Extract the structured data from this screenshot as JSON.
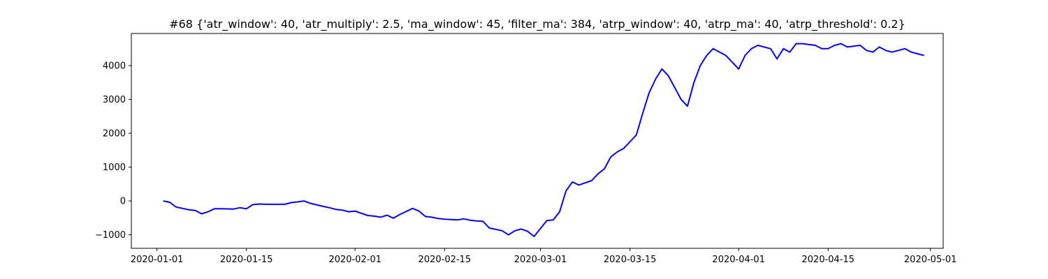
{
  "chart_data": {
    "type": "line",
    "title": "#68 {'atr_window': 40, 'atr_multiply': 2.5, 'ma_window': 45, 'filter_ma': 384, 'atrp_window': 40, 'atrp_ma': 40, 'atrp_threshold': 0.2}",
    "xlabel": "",
    "ylabel": "",
    "xlim": [
      "2019-12-28",
      "2020-05-03"
    ],
    "ylim": [
      -1400,
      4950
    ],
    "x_ticks": [
      "2020-01-01",
      "2020-01-15",
      "2020-02-01",
      "2020-02-15",
      "2020-03-01",
      "2020-03-15",
      "2020-04-01",
      "2020-04-15",
      "2020-05-01"
    ],
    "y_ticks": [
      -1000,
      0,
      1000,
      2000,
      3000,
      4000
    ],
    "y_tick_labels": [
      "−1000",
      "0",
      "1000",
      "2000",
      "3000",
      "4000"
    ],
    "grid": false,
    "line_color": "#0000ff",
    "series": [
      {
        "x": [
          "2020-01-02",
          "2020-01-03",
          "2020-01-04",
          "2020-01-06",
          "2020-01-07",
          "2020-01-08",
          "2020-01-09",
          "2020-01-10",
          "2020-01-11",
          "2020-01-13",
          "2020-01-14",
          "2020-01-15",
          "2020-01-16",
          "2020-01-17",
          "2020-01-18",
          "2020-01-20",
          "2020-01-21",
          "2020-01-22",
          "2020-01-23",
          "2020-01-24",
          "2020-01-25",
          "2020-01-27",
          "2020-01-28",
          "2020-01-29",
          "2020-01-30",
          "2020-01-31",
          "2020-02-01",
          "2020-02-03",
          "2020-02-04",
          "2020-02-05",
          "2020-02-06",
          "2020-02-07",
          "2020-02-08",
          "2020-02-10",
          "2020-02-11",
          "2020-02-12",
          "2020-02-13",
          "2020-02-14",
          "2020-02-15",
          "2020-02-17",
          "2020-02-18",
          "2020-02-19",
          "2020-02-20",
          "2020-02-21",
          "2020-02-22",
          "2020-02-24",
          "2020-02-25",
          "2020-02-26",
          "2020-02-27",
          "2020-02-28",
          "2020-02-29",
          "2020-03-02",
          "2020-03-03",
          "2020-03-04",
          "2020-03-05",
          "2020-03-06",
          "2020-03-07",
          "2020-03-09",
          "2020-03-10",
          "2020-03-11",
          "2020-03-12",
          "2020-03-13",
          "2020-03-14",
          "2020-03-16",
          "2020-03-17",
          "2020-03-18",
          "2020-03-19",
          "2020-03-20",
          "2020-03-21",
          "2020-03-23",
          "2020-03-24",
          "2020-03-25",
          "2020-03-26",
          "2020-03-27",
          "2020-03-28",
          "2020-03-30",
          "2020-03-31",
          "2020-04-01",
          "2020-04-02",
          "2020-04-03",
          "2020-04-04",
          "2020-04-06",
          "2020-04-07",
          "2020-04-08",
          "2020-04-09",
          "2020-04-10",
          "2020-04-11",
          "2020-04-13",
          "2020-04-14",
          "2020-04-15",
          "2020-04-16",
          "2020-04-17",
          "2020-04-18",
          "2020-04-20",
          "2020-04-21",
          "2020-04-22",
          "2020-04-23",
          "2020-04-24",
          "2020-04-25",
          "2020-04-27",
          "2020-04-28",
          "2020-04-29",
          "2020-04-30"
        ],
        "y": [
          0,
          -40,
          -180,
          -260,
          -280,
          -380,
          -320,
          -230,
          -230,
          -240,
          -200,
          -230,
          -110,
          -90,
          -100,
          -100,
          -100,
          -50,
          -30,
          0,
          -70,
          -160,
          -200,
          -250,
          -270,
          -320,
          -300,
          -430,
          -450,
          -480,
          -420,
          -510,
          -400,
          -220,
          -300,
          -460,
          -480,
          -520,
          -540,
          -560,
          -530,
          -570,
          -590,
          -600,
          -800,
          -880,
          -1000,
          -880,
          -830,
          -900,
          -1050,
          -580,
          -560,
          -320,
          300,
          560,
          470,
          600,
          800,
          950,
          1300,
          1450,
          1550,
          1950,
          2600,
          3200,
          3600,
          3900,
          3700,
          3000,
          2800,
          3500,
          4000,
          4300,
          4500,
          4300,
          4100,
          3900,
          4300,
          4500,
          4600,
          4500,
          4200,
          4500,
          4400,
          4650,
          4650,
          4600,
          4500,
          4500,
          4600,
          4650,
          4550,
          4600,
          4450,
          4400,
          4550,
          4450,
          4400,
          4500,
          4400,
          4350,
          4300
        ]
      }
    ]
  }
}
